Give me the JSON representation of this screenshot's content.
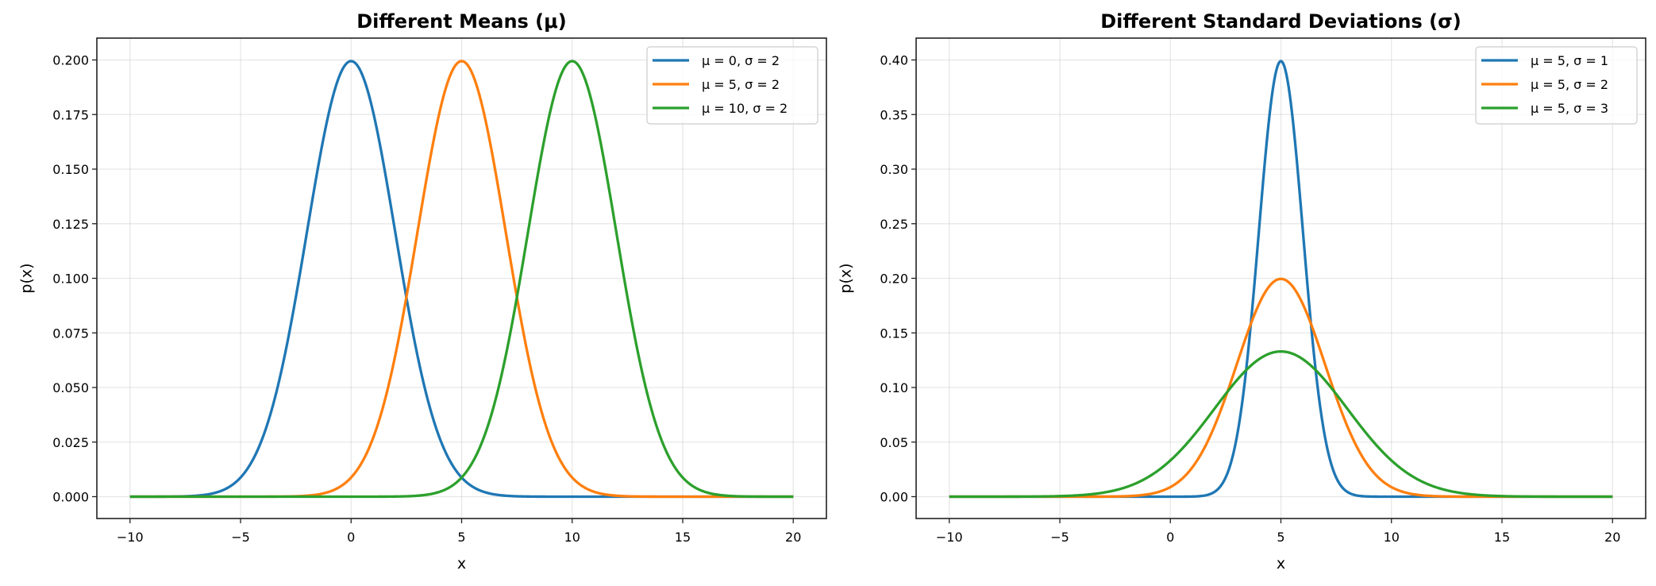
{
  "chart_data": [
    {
      "type": "line",
      "title": "Different Means (μ)",
      "xlabel": "x",
      "ylabel": "p(x)",
      "xlim": [
        -11.5,
        21.5
      ],
      "ylim": [
        -0.01,
        0.21
      ],
      "x_range": [
        -10,
        20
      ],
      "xticks": [
        "−10",
        "−5",
        "0",
        "5",
        "10",
        "15",
        "20"
      ],
      "xtick_values": [
        -10,
        -5,
        0,
        5,
        10,
        15,
        20
      ],
      "yticks": [
        "0.000",
        "0.025",
        "0.050",
        "0.075",
        "0.100",
        "0.125",
        "0.150",
        "0.175",
        "0.200"
      ],
      "ytick_values": [
        0,
        0.025,
        0.05,
        0.075,
        0.1,
        0.125,
        0.15,
        0.175,
        0.2
      ],
      "grid": true,
      "legend_position": "top-right",
      "series": [
        {
          "name": "μ = 0, σ = 2",
          "mu": 0,
          "sigma": 2,
          "color": "#1f77b4"
        },
        {
          "name": "μ = 5, σ = 2",
          "mu": 5,
          "sigma": 2,
          "color": "#ff7f0e"
        },
        {
          "name": "μ = 10, σ = 2",
          "mu": 10,
          "sigma": 2,
          "color": "#2ca02c"
        }
      ]
    },
    {
      "type": "line",
      "title": "Different Standard Deviations (σ)",
      "xlabel": "x",
      "ylabel": "p(x)",
      "xlim": [
        -11.5,
        21.5
      ],
      "ylim": [
        -0.02,
        0.42
      ],
      "x_range": [
        -10,
        20
      ],
      "xticks": [
        "−10",
        "−5",
        "0",
        "5",
        "10",
        "15",
        "20"
      ],
      "xtick_values": [
        -10,
        -5,
        0,
        5,
        10,
        15,
        20
      ],
      "yticks": [
        "0.00",
        "0.05",
        "0.10",
        "0.15",
        "0.20",
        "0.25",
        "0.30",
        "0.35",
        "0.40"
      ],
      "ytick_values": [
        0,
        0.05,
        0.1,
        0.15,
        0.2,
        0.25,
        0.3,
        0.35,
        0.4
      ],
      "grid": true,
      "legend_position": "top-right",
      "series": [
        {
          "name": "μ = 5, σ = 1",
          "mu": 5,
          "sigma": 1,
          "color": "#1f77b4"
        },
        {
          "name": "μ = 5, σ = 2",
          "mu": 5,
          "sigma": 2,
          "color": "#ff7f0e"
        },
        {
          "name": "μ = 5, σ = 3",
          "mu": 5,
          "sigma": 3,
          "color": "#2ca02c"
        }
      ]
    }
  ]
}
